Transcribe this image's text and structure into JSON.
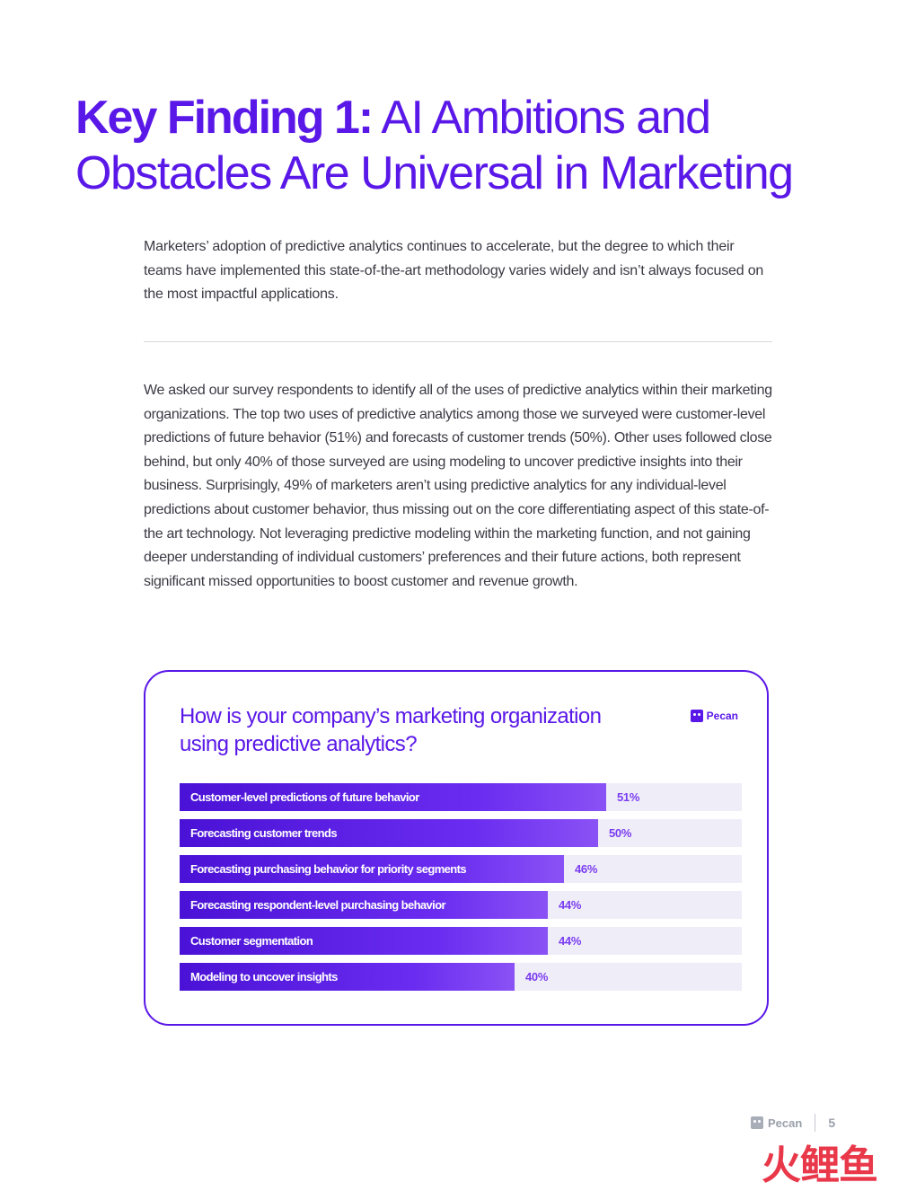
{
  "title": {
    "bold": "Key Finding 1:",
    "rest_line1": " AI Ambitions and",
    "rest_line2": "Obstacles Are Universal in Marketing"
  },
  "intro": "Marketers’ adoption of predictive analytics continues to accelerate, but the degree to which their teams have implemented this state-of-the-art methodology varies widely and isn’t always focused on the most impactful applications.",
  "body": "We asked our survey respondents to identify all of the uses of predictive analytics within their marketing organizations. The top two uses of predictive analytics among those we surveyed were customer-level predictions of future behavior (51%) and forecasts of customer trends (50%). Other uses followed close behind, but only 40% of those surveyed are using modeling to uncover predictive insights into their business. Surprisingly, 49% of marketers aren’t using predictive analytics for any individual-level predictions about customer behavior, thus missing out on the core differentiating aspect of this state-of-the art technology. Not leveraging predictive modeling within the marketing function, and not gaining deeper understanding of individual customers’ preferences and their future actions, both represent significant missed opportunities to boost customer and revenue growth.",
  "chart_data": {
    "type": "bar",
    "orientation": "horizontal",
    "title": "How is your company’s marketing organization using predictive analytics?",
    "brand": "Pecan",
    "xlim": [
      0,
      100
    ],
    "categories": [
      "Customer-level predictions of future behavior",
      "Forecasting customer trends",
      "Forecasting purchasing behavior for priority segments",
      "Forecasting respondent-level purchasing behavior",
      "Customer segmentation",
      "Modeling to uncover insights"
    ],
    "values": [
      51,
      50,
      46,
      44,
      44,
      40
    ],
    "value_labels": [
      "51%",
      "50%",
      "46%",
      "44%",
      "44%",
      "40%"
    ],
    "colors": {
      "bar": "#5a18e8",
      "track": "#efedf8",
      "value_text": "#7a3cf0"
    }
  },
  "footer": {
    "brand": "Pecan",
    "page": "5"
  },
  "watermark": "火鲤鱼"
}
